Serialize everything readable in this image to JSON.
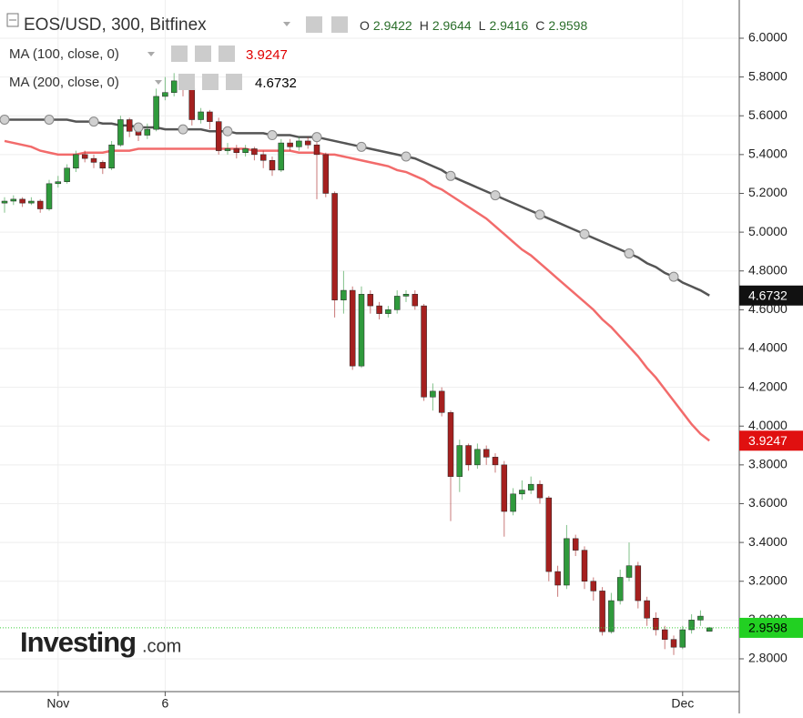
{
  "chart_data": {
    "type": "candlestick",
    "title": "EOS/USD, 300, Bitfinex",
    "ohlc_labels": [
      "O",
      "H",
      "L",
      "C"
    ],
    "watermark": {
      "brand": "Investing",
      "suffix": ".com"
    },
    "up_color": "#2f9a3c",
    "down_color": "#a5201f",
    "grid": true,
    "ylim": [
      2.631,
      6.197
    ],
    "yticks": [
      {
        "value": 2.8,
        "label": "2.8000"
      },
      {
        "value": 3.0,
        "label": "3.0000"
      },
      {
        "value": 3.2,
        "label": "3.2000"
      },
      {
        "value": 3.4,
        "label": "3.4000"
      },
      {
        "value": 3.6,
        "label": "3.6000"
      },
      {
        "value": 3.8,
        "label": "3.8000"
      },
      {
        "value": 4.0,
        "label": "4.0000"
      },
      {
        "value": 4.2,
        "label": "4.2000"
      },
      {
        "value": 4.4,
        "label": "4.4000"
      },
      {
        "value": 4.6,
        "label": "4.6000"
      },
      {
        "value": 4.8,
        "label": "4.8000"
      },
      {
        "value": 5.0,
        "label": "5.0000"
      },
      {
        "value": 5.2,
        "label": "5.2000"
      },
      {
        "value": 5.4,
        "label": "5.4000"
      },
      {
        "value": 5.6,
        "label": "5.6000"
      },
      {
        "value": 5.8,
        "label": "5.8000"
      },
      {
        "value": 6.0,
        "label": "6.0000"
      }
    ],
    "categories": [
      null,
      null,
      null,
      null,
      null,
      null,
      "Nov",
      null,
      null,
      null,
      null,
      null,
      null,
      null,
      null,
      null,
      null,
      null,
      "6",
      null,
      null,
      null,
      null,
      null,
      null,
      null,
      null,
      null,
      null,
      null,
      null,
      null,
      null,
      null,
      null,
      null,
      null,
      null,
      null,
      null,
      null,
      null,
      null,
      null,
      null,
      null,
      null,
      null,
      null,
      null,
      null,
      null,
      null,
      null,
      null,
      null,
      null,
      null,
      null,
      null,
      null,
      null,
      null,
      null,
      null,
      null,
      null,
      null,
      null,
      null,
      null,
      null,
      null,
      null,
      null,
      null,
      "Dec",
      null,
      null,
      null
    ],
    "open": [
      5.15,
      5.16,
      5.17,
      5.15,
      5.16,
      5.12,
      5.25,
      5.26,
      5.33,
      5.4,
      5.38,
      5.36,
      5.33,
      5.45,
      5.58,
      5.52,
      5.5,
      5.53,
      5.7,
      5.72,
      5.78,
      5.74,
      5.58,
      5.62,
      5.57,
      5.42,
      5.43,
      5.41,
      5.43,
      5.4,
      5.37,
      5.32,
      5.46,
      5.44,
      5.47,
      5.45,
      5.4,
      5.2,
      4.65,
      4.7,
      4.31,
      4.68,
      4.62,
      4.58,
      4.6,
      4.67,
      4.68,
      4.62,
      4.15,
      4.18,
      4.07,
      3.74,
      3.9,
      3.8,
      3.88,
      3.84,
      3.8,
      3.56,
      3.65,
      3.67,
      3.7,
      3.63,
      3.25,
      3.18,
      3.42,
      3.36,
      3.2,
      3.15,
      2.94,
      3.1,
      3.22,
      3.28,
      3.1,
      3.01,
      2.95,
      2.9,
      2.86,
      2.95,
      3.0,
      2.9422
    ],
    "high": [
      5.18,
      5.19,
      5.18,
      5.18,
      5.17,
      5.27,
      5.29,
      5.35,
      5.42,
      5.42,
      5.4,
      5.37,
      5.47,
      5.6,
      5.59,
      5.55,
      5.56,
      5.74,
      5.8,
      5.82,
      5.8,
      5.76,
      5.64,
      5.63,
      5.59,
      5.46,
      5.45,
      5.45,
      5.44,
      5.42,
      5.39,
      5.48,
      5.48,
      5.49,
      5.49,
      5.47,
      5.41,
      5.21,
      4.8,
      4.72,
      4.72,
      4.7,
      4.64,
      4.62,
      4.7,
      4.7,
      4.7,
      4.63,
      4.22,
      4.2,
      4.08,
      3.93,
      3.91,
      3.91,
      3.9,
      3.86,
      3.82,
      3.68,
      3.72,
      3.74,
      3.72,
      3.64,
      3.28,
      3.49,
      3.44,
      3.38,
      3.22,
      3.17,
      3.14,
      3.26,
      3.4,
      3.3,
      3.12,
      3.04,
      2.97,
      2.92,
      2.97,
      3.03,
      3.05,
      2.9644
    ],
    "low": [
      5.1,
      5.14,
      5.13,
      5.14,
      5.1,
      5.11,
      5.23,
      5.25,
      5.31,
      5.36,
      5.33,
      5.3,
      5.32,
      5.44,
      5.49,
      5.47,
      5.48,
      5.52,
      5.68,
      5.7,
      5.7,
      5.55,
      5.56,
      5.53,
      5.4,
      5.4,
      5.38,
      5.39,
      5.37,
      5.33,
      5.29,
      5.31,
      5.42,
      5.42,
      5.43,
      5.17,
      5.18,
      4.56,
      4.58,
      4.29,
      4.3,
      4.58,
      4.55,
      4.56,
      4.58,
      4.64,
      4.6,
      4.13,
      4.08,
      4.05,
      3.51,
      3.66,
      3.77,
      3.78,
      3.8,
      3.76,
      3.43,
      3.54,
      3.62,
      3.65,
      3.6,
      3.2,
      3.12,
      3.16,
      3.33,
      3.16,
      3.1,
      2.92,
      2.93,
      3.08,
      3.2,
      3.06,
      2.97,
      2.92,
      2.85,
      2.82,
      2.85,
      2.93,
      2.97,
      2.9416
    ],
    "close": [
      5.16,
      5.17,
      5.15,
      5.16,
      5.12,
      5.25,
      5.26,
      5.33,
      5.4,
      5.38,
      5.36,
      5.33,
      5.45,
      5.58,
      5.52,
      5.5,
      5.53,
      5.7,
      5.72,
      5.78,
      5.74,
      5.58,
      5.62,
      5.57,
      5.42,
      5.43,
      5.41,
      5.43,
      5.4,
      5.37,
      5.32,
      5.46,
      5.44,
      5.47,
      5.45,
      5.4,
      5.2,
      4.65,
      4.7,
      4.31,
      4.68,
      4.62,
      4.58,
      4.6,
      4.67,
      4.68,
      4.62,
      4.15,
      4.18,
      4.07,
      3.74,
      3.9,
      3.8,
      3.88,
      3.84,
      3.8,
      3.56,
      3.65,
      3.67,
      3.7,
      3.63,
      3.25,
      3.18,
      3.42,
      3.36,
      3.2,
      3.15,
      2.94,
      3.1,
      3.22,
      3.28,
      3.1,
      3.01,
      2.95,
      2.9,
      2.86,
      2.95,
      3.0,
      3.02,
      2.9598
    ],
    "series": [
      {
        "name": "MA (100, close, 0)",
        "color": "#f26b6b",
        "label_color": "#e00000",
        "values": [
          5.47,
          5.46,
          5.45,
          5.44,
          5.42,
          5.41,
          5.4,
          5.4,
          5.4,
          5.41,
          5.41,
          5.41,
          5.42,
          5.42,
          5.42,
          5.43,
          5.43,
          5.43,
          5.43,
          5.43,
          5.43,
          5.43,
          5.43,
          5.43,
          5.43,
          5.43,
          5.43,
          5.43,
          5.42,
          5.42,
          5.42,
          5.42,
          5.42,
          5.41,
          5.41,
          5.41,
          5.4,
          5.4,
          5.39,
          5.38,
          5.37,
          5.36,
          5.35,
          5.34,
          5.32,
          5.31,
          5.29,
          5.27,
          5.24,
          5.22,
          5.19,
          5.16,
          5.13,
          5.1,
          5.07,
          5.03,
          4.99,
          4.95,
          4.91,
          4.88,
          4.84,
          4.8,
          4.76,
          4.72,
          4.68,
          4.64,
          4.6,
          4.55,
          4.51,
          4.46,
          4.41,
          4.36,
          4.3,
          4.25,
          4.19,
          4.13,
          4.07,
          4.01,
          3.96,
          3.9247
        ]
      },
      {
        "name": "MA (200, close, 0)",
        "color": "#555555",
        "label_color": "#000000",
        "markers": true,
        "values": [
          5.58,
          5.58,
          5.58,
          5.58,
          5.58,
          5.58,
          5.58,
          5.58,
          5.57,
          5.57,
          5.57,
          5.56,
          5.56,
          5.55,
          5.55,
          5.54,
          5.54,
          5.54,
          5.53,
          5.53,
          5.53,
          5.53,
          5.53,
          5.52,
          5.52,
          5.52,
          5.51,
          5.51,
          5.51,
          5.51,
          5.5,
          5.5,
          5.5,
          5.49,
          5.49,
          5.49,
          5.48,
          5.47,
          5.46,
          5.45,
          5.44,
          5.43,
          5.42,
          5.41,
          5.4,
          5.39,
          5.38,
          5.36,
          5.34,
          5.32,
          5.29,
          5.27,
          5.25,
          5.23,
          5.21,
          5.19,
          5.17,
          5.15,
          5.13,
          5.11,
          5.09,
          5.07,
          5.05,
          5.03,
          5.01,
          4.99,
          4.97,
          4.95,
          4.93,
          4.91,
          4.89,
          4.87,
          4.84,
          4.82,
          4.79,
          4.77,
          4.74,
          4.72,
          4.7,
          4.6732
        ]
      }
    ]
  }
}
